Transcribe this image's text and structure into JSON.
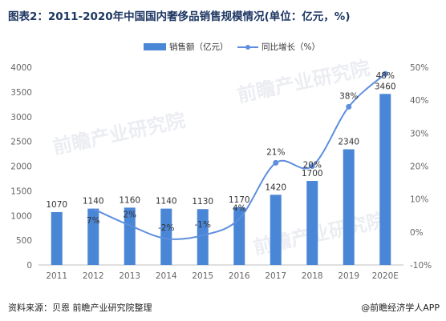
{
  "title": "图表2：2011-2020年中国国内奢侈品销售规模情况(单位：亿元，%)",
  "source": "资料来源：贝恩 前瞻产业研究院整理",
  "credit": "@前瞻经济学人APP",
  "watermark": "前瞻产业研究院",
  "colors": {
    "bar": "#4a86d6",
    "line": "#5e8ede",
    "text": "#333333",
    "axis": "#666666",
    "title": "#1e3763"
  },
  "chart_data": {
    "type": "bar",
    "categories": [
      "2011",
      "2012",
      "2013",
      "2014",
      "2015",
      "2016",
      "2017",
      "2018",
      "2019",
      "2020E"
    ],
    "series": [
      {
        "name": "销售额（亿元）",
        "type": "bar",
        "axis": "left",
        "values": [
          1070,
          1140,
          1160,
          1140,
          1130,
          1170,
          1420,
          1700,
          2340,
          3460
        ],
        "labels": [
          "1070",
          "1140",
          "1160",
          "1140",
          "1130",
          "1170",
          "1420",
          "1700",
          "2340",
          "3460"
        ]
      },
      {
        "name": "同比增长（%）",
        "type": "line",
        "axis": "right",
        "values": [
          null,
          7,
          2,
          -2,
          -1,
          4,
          21,
          20,
          38,
          48
        ],
        "labels": [
          "",
          "7%",
          "2%",
          "-2%",
          "-1%",
          "4%",
          "21%",
          "20%",
          "38%",
          "48%"
        ]
      }
    ],
    "y_left": {
      "min": 0,
      "max": 4000,
      "ticks": [
        "0",
        "500",
        "1000",
        "1500",
        "2000",
        "2500",
        "3000",
        "3500",
        "4000"
      ]
    },
    "y_right": {
      "min": -10,
      "max": 50,
      "ticks": [
        "-10%",
        "0%",
        "10%",
        "20%",
        "30%",
        "40%",
        "50%"
      ]
    },
    "legend_position": "top-center",
    "grid": false
  }
}
